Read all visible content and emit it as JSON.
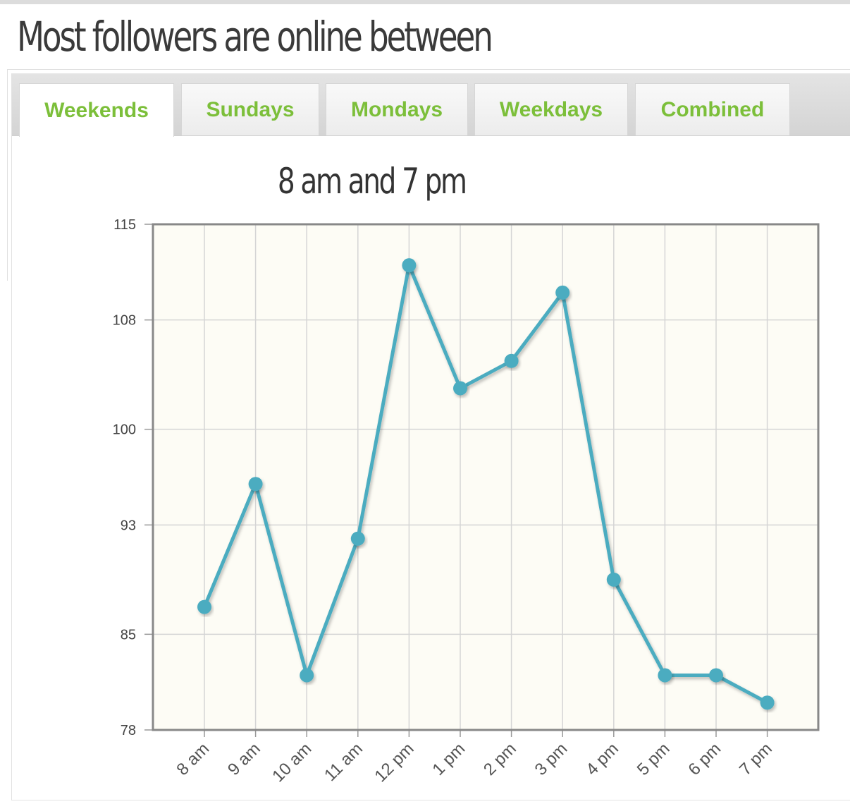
{
  "page": {
    "title": "Most followers are online between"
  },
  "tabs": [
    {
      "label": "Weekends",
      "active": true
    },
    {
      "label": "Sundays",
      "active": false
    },
    {
      "label": "Mondays",
      "active": false
    },
    {
      "label": "Weekdays",
      "active": false
    },
    {
      "label": "Combined",
      "active": false
    }
  ],
  "colors": {
    "accent": "#7cbf3a",
    "line": "#4bacc0",
    "plot_bg": "#fdfcf5",
    "grid": "#d5d5d5",
    "frame": "#888888"
  },
  "chart_data": {
    "type": "line",
    "title": "8 am and 7 pm",
    "xlabel": "",
    "ylabel": "",
    "categories": [
      "8 am",
      "9 am",
      "10 am",
      "11 am",
      "12 pm",
      "1 pm",
      "2 pm",
      "3 pm",
      "4 pm",
      "5 pm",
      "6 pm",
      "7 pm"
    ],
    "series": [
      {
        "values": [
          87,
          96,
          82,
          92,
          112,
          103,
          105,
          110,
          89,
          82,
          82,
          80
        ]
      }
    ],
    "ylim": [
      78,
      115
    ],
    "yticks": [
      78,
      85,
      93,
      100,
      108,
      115
    ],
    "grid": true,
    "legend": "none"
  }
}
